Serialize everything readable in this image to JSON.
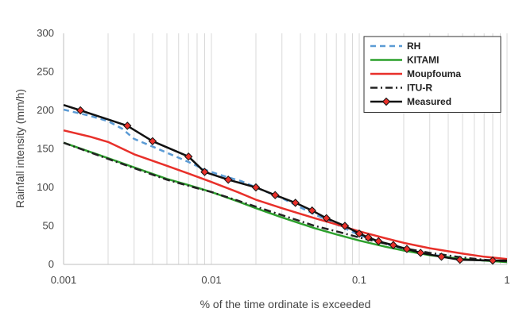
{
  "chart_data": {
    "type": "line",
    "title": "",
    "xlabel": "% of the time ordinate is exceeded",
    "ylabel": "Rainfall intensity (mm/h)",
    "xscale": "log",
    "xlim": [
      0.001,
      1
    ],
    "ylim": [
      0,
      300
    ],
    "x_ticks": [
      0.001,
      0.01,
      0.1,
      1
    ],
    "x_tick_labels": [
      "0.001",
      "0.01",
      "0.1",
      "1"
    ],
    "y_ticks": [
      0,
      50,
      100,
      150,
      200,
      250,
      300
    ],
    "y_tick_labels": [
      "0",
      "50",
      "100",
      "150",
      "200",
      "250",
      "300"
    ],
    "grid": "vertical minor log gridlines",
    "legend_position": "top-right",
    "series": [
      {
        "name": "RH",
        "color": "#5b9bd5",
        "dash": "dashed",
        "marker": "none",
        "points": [
          [
            0.001,
            201
          ],
          [
            0.0015,
            193
          ],
          [
            0.002,
            186
          ],
          [
            0.0025,
            176
          ],
          [
            0.003,
            163
          ],
          [
            0.004,
            153
          ],
          [
            0.005,
            145
          ],
          [
            0.007,
            133
          ],
          [
            0.009,
            123
          ],
          [
            0.012,
            115
          ],
          [
            0.016,
            108
          ],
          [
            0.02,
            100
          ],
          [
            0.03,
            86
          ],
          [
            0.04,
            74
          ],
          [
            0.05,
            65
          ],
          [
            0.07,
            52
          ],
          [
            0.1,
            38
          ],
          [
            0.15,
            27
          ],
          [
            0.2,
            20
          ],
          [
            0.3,
            13
          ],
          [
            0.5,
            7
          ],
          [
            0.7,
            5
          ],
          [
            1,
            4
          ]
        ]
      },
      {
        "name": "KITAMI",
        "color": "#2ca02c",
        "dash": "solid",
        "marker": "none",
        "points": [
          [
            0.001,
            158
          ],
          [
            0.002,
            138
          ],
          [
            0.003,
            126
          ],
          [
            0.005,
            111
          ],
          [
            0.007,
            103
          ],
          [
            0.01,
            94
          ],
          [
            0.015,
            82
          ],
          [
            0.02,
            73
          ],
          [
            0.03,
            61
          ],
          [
            0.05,
            47
          ],
          [
            0.07,
            39
          ],
          [
            0.1,
            31
          ],
          [
            0.15,
            23
          ],
          [
            0.2,
            18
          ],
          [
            0.3,
            12
          ],
          [
            0.5,
            7
          ],
          [
            0.7,
            5
          ],
          [
            1,
            3
          ]
        ]
      },
      {
        "name": "Moupfouma",
        "color": "#e8302a",
        "dash": "solid",
        "marker": "none",
        "points": [
          [
            0.001,
            174
          ],
          [
            0.0015,
            166
          ],
          [
            0.002,
            159
          ],
          [
            0.003,
            143
          ],
          [
            0.005,
            128
          ],
          [
            0.007,
            118
          ],
          [
            0.01,
            107
          ],
          [
            0.015,
            94
          ],
          [
            0.02,
            84
          ],
          [
            0.03,
            73
          ],
          [
            0.05,
            60
          ],
          [
            0.07,
            52
          ],
          [
            0.1,
            43
          ],
          [
            0.15,
            34
          ],
          [
            0.2,
            28
          ],
          [
            0.3,
            21
          ],
          [
            0.5,
            14
          ],
          [
            0.7,
            10
          ],
          [
            1,
            7
          ]
        ]
      },
      {
        "name": "ITU-R",
        "color": "#222222",
        "dash": "dashdot",
        "marker": "none",
        "points": [
          [
            0.001,
            158
          ],
          [
            0.002,
            137
          ],
          [
            0.003,
            125
          ],
          [
            0.005,
            110
          ],
          [
            0.007,
            102
          ],
          [
            0.01,
            94
          ],
          [
            0.015,
            83
          ],
          [
            0.02,
            75
          ],
          [
            0.03,
            64
          ],
          [
            0.05,
            50
          ],
          [
            0.07,
            43
          ],
          [
            0.1,
            35
          ],
          [
            0.15,
            27
          ],
          [
            0.2,
            21
          ],
          [
            0.3,
            15
          ],
          [
            0.5,
            9
          ],
          [
            0.7,
            6
          ],
          [
            1,
            4
          ]
        ]
      },
      {
        "name": "Measured",
        "color": "#111111",
        "dash": "solid",
        "marker": "diamond",
        "marker_fill": "#e8302a",
        "points": [
          [
            0.001,
            207
          ],
          [
            0.0013,
            200
          ],
          [
            0.0027,
            180
          ],
          [
            0.004,
            160
          ],
          [
            0.007,
            140
          ],
          [
            0.009,
            120
          ],
          [
            0.013,
            110
          ],
          [
            0.02,
            100
          ],
          [
            0.027,
            90
          ],
          [
            0.037,
            80
          ],
          [
            0.048,
            70
          ],
          [
            0.06,
            60
          ],
          [
            0.08,
            50
          ],
          [
            0.1,
            40
          ],
          [
            0.115,
            35
          ],
          [
            0.135,
            30
          ],
          [
            0.17,
            25
          ],
          [
            0.21,
            20
          ],
          [
            0.26,
            15
          ],
          [
            0.36,
            10
          ],
          [
            0.48,
            6
          ],
          [
            0.8,
            5
          ],
          [
            1,
            5
          ]
        ]
      }
    ]
  }
}
